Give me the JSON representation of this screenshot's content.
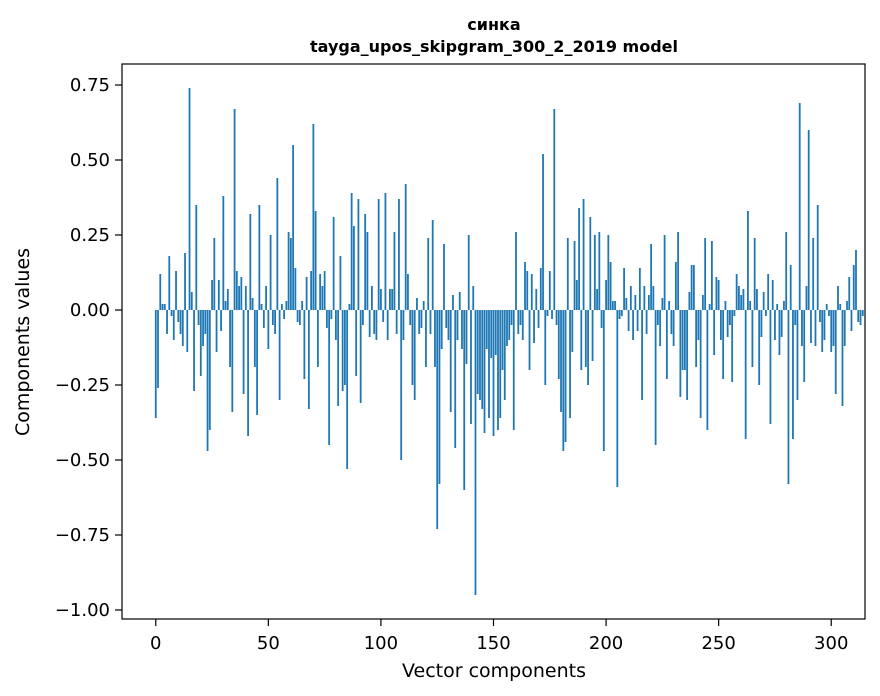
{
  "chart_data": {
    "type": "bar",
    "title": "синка",
    "subtitle": "tayga_upos_skipgram_300_2_2019 model",
    "xlabel": "Vector components",
    "ylabel": "Components values",
    "xlim": [
      -15,
      315
    ],
    "ylim": [
      -1.03,
      0.82
    ],
    "x_ticks": [
      0,
      50,
      100,
      150,
      200,
      250,
      300
    ],
    "y_ticks": [
      0.75,
      0.5,
      0.25,
      0.0,
      -0.25,
      -0.5,
      -0.75,
      -1.0
    ],
    "y_tick_labels": [
      "0.75",
      "0.50",
      "0.25",
      "0.00",
      "−0.25",
      "−0.50",
      "−0.75",
      "−1.00"
    ],
    "grid": false,
    "bar_color": "#1f77b4",
    "values": [
      -0.36,
      -0.26,
      0.12,
      0.02,
      0.02,
      -0.08,
      0.18,
      -0.02,
      -0.1,
      0.13,
      -0.04,
      -0.08,
      -0.12,
      0.19,
      -0.14,
      0.74,
      0.06,
      -0.27,
      0.35,
      -0.05,
      -0.22,
      -0.12,
      -0.08,
      -0.47,
      -0.4,
      0.1,
      0.24,
      -0.14,
      0.1,
      -0.07,
      0.38,
      0.03,
      0.07,
      -0.19,
      -0.34,
      0.67,
      0.13,
      0.08,
      0.11,
      -0.28,
      0.08,
      -0.42,
      0.32,
      0.04,
      -0.19,
      -0.35,
      0.35,
      0.02,
      -0.06,
      0.08,
      -0.13,
      0.25,
      -0.05,
      -0.08,
      0.44,
      -0.3,
      0.02,
      -0.03,
      0.03,
      0.26,
      0.24,
      0.55,
      0.14,
      -0.04,
      -0.05,
      0.03,
      -0.23,
      0.11,
      -0.33,
      0.13,
      0.62,
      0.33,
      -0.19,
      0.12,
      0.08,
      0.13,
      -0.06,
      -0.45,
      -0.03,
      0.31,
      -0.1,
      -0.32,
      0.18,
      -0.27,
      -0.25,
      -0.53,
      0.02,
      0.39,
      0.28,
      -0.22,
      0.37,
      -0.31,
      -0.05,
      0.32,
      0.26,
      -0.09,
      0.08,
      -0.08,
      -0.1,
      0.37,
      0.07,
      -0.04,
      0.39,
      -0.1,
      0.07,
      0.07,
      0.26,
      -0.08,
      0.37,
      -0.5,
      -0.1,
      0.42,
      0.12,
      -0.05,
      -0.25,
      -0.3,
      0.04,
      -0.08,
      -0.06,
      0.03,
      -0.19,
      0.24,
      -0.08,
      0.3,
      -0.19,
      -0.73,
      -0.58,
      -0.13,
      0.22,
      -0.06,
      -0.1,
      -0.34,
      0.05,
      -0.46,
      -0.1,
      0.06,
      -0.13,
      -0.6,
      -0.18,
      0.25,
      -0.38,
      0.08,
      -0.95,
      -0.28,
      -0.3,
      -0.33,
      -0.41,
      -0.13,
      -0.36,
      -0.16,
      -0.42,
      -0.15,
      -0.4,
      -0.36,
      -0.2,
      -0.3,
      -0.12,
      -0.1,
      -0.05,
      -0.4,
      0.26,
      -0.08,
      -0.05,
      -0.1,
      0.16,
      0.13,
      -0.2,
      0.12,
      -0.11,
      0.07,
      -0.06,
      0.14,
      0.52,
      -0.25,
      -0.02,
      0.13,
      -0.03,
      0.67,
      -0.05,
      -0.23,
      -0.34,
      -0.47,
      -0.44,
      0.24,
      -0.36,
      -0.14,
      0.23,
      0.1,
      0.34,
      -0.2,
      0.37,
      -0.19,
      -0.25,
      0.31,
      -0.17,
      0.25,
      0.07,
      0.26,
      -0.06,
      -0.47,
      0.1,
      0.25,
      0.16,
      0.03,
      0.03,
      -0.59,
      -0.03,
      -0.02,
      0.14,
      0.04,
      -0.07,
      0.08,
      -0.1,
      0.05,
      -0.07,
      0.14,
      -0.3,
      0.08,
      -0.08,
      0.05,
      0.22,
      0.08,
      -0.45,
      -0.05,
      -0.12,
      0.04,
      0.25,
      -0.23,
      0.03,
      -0.08,
      -0.12,
      0.16,
      0.26,
      -0.29,
      -0.2,
      -0.2,
      -0.3,
      0.06,
      0.15,
      0.15,
      -0.19,
      -0.1,
      -0.36,
      0.05,
      0.24,
      -0.4,
      0.02,
      0.23,
      -0.15,
      0.11,
      0.1,
      -0.1,
      -0.23,
      0.03,
      -0.09,
      -0.05,
      -0.24,
      -0.02,
      0.12,
      0.08,
      0.05,
      0.07,
      -0.43,
      0.33,
      0.03,
      -0.19,
      0.24,
      0.07,
      -0.25,
      -0.09,
      0.06,
      -0.02,
      0.12,
      -0.38,
      0.1,
      -0.1,
      0.02,
      -0.15,
      -0.09,
      0.03,
      0.26,
      -0.58,
      0.15,
      -0.43,
      -0.05,
      -0.3,
      0.69,
      -0.12,
      -0.24,
      0.08,
      0.6,
      -0.11,
      0.24,
      -0.12,
      0.35,
      -0.04,
      -0.14,
      -0.1,
      0.02,
      -0.02,
      -0.14,
      -0.12,
      -0.28,
      0.08,
      0.02,
      -0.32,
      -0.12,
      0.03,
      0.11,
      -0.07,
      0.15,
      0.2,
      -0.04,
      -0.05,
      -0.02
    ]
  }
}
